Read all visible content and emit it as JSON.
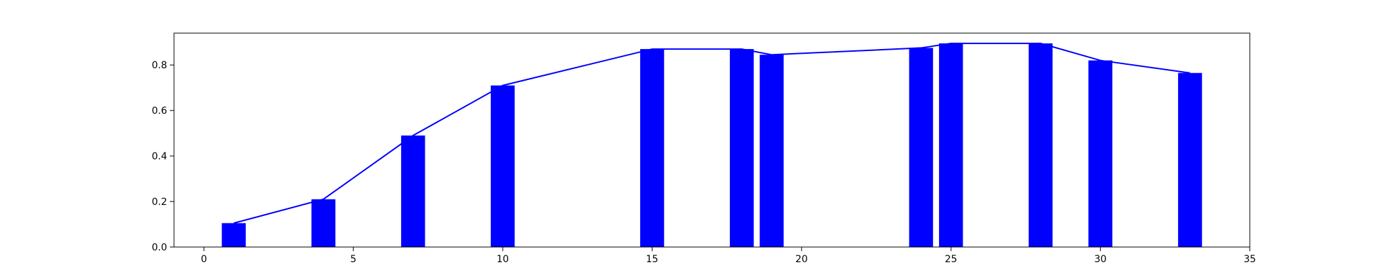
{
  "chart_data": {
    "type": "bar",
    "x": [
      1,
      4,
      7,
      10,
      15,
      18,
      19,
      24,
      25,
      28,
      30,
      33
    ],
    "values": [
      0.105,
      0.21,
      0.49,
      0.71,
      0.87,
      0.87,
      0.845,
      0.875,
      0.895,
      0.895,
      0.82,
      0.765
    ],
    "overlay_line": true,
    "title": "",
    "xlabel": "",
    "ylabel": "",
    "xlim": [
      -1,
      35
    ],
    "ylim": [
      0,
      0.94
    ],
    "x_ticks": [
      0,
      5,
      10,
      15,
      20,
      25,
      30,
      35
    ],
    "y_ticks": [
      0.0,
      0.2,
      0.4,
      0.6,
      0.8
    ],
    "x_tick_labels": [
      "0",
      "5",
      "10",
      "15",
      "20",
      "25",
      "30",
      "35"
    ],
    "y_tick_labels": [
      "0.0",
      "0.2",
      "0.4",
      "0.6",
      "0.8"
    ],
    "bar_width": 0.8,
    "bar_color": "#0000ff",
    "line_color": "#0000ff",
    "grid": false,
    "legend": "none"
  }
}
